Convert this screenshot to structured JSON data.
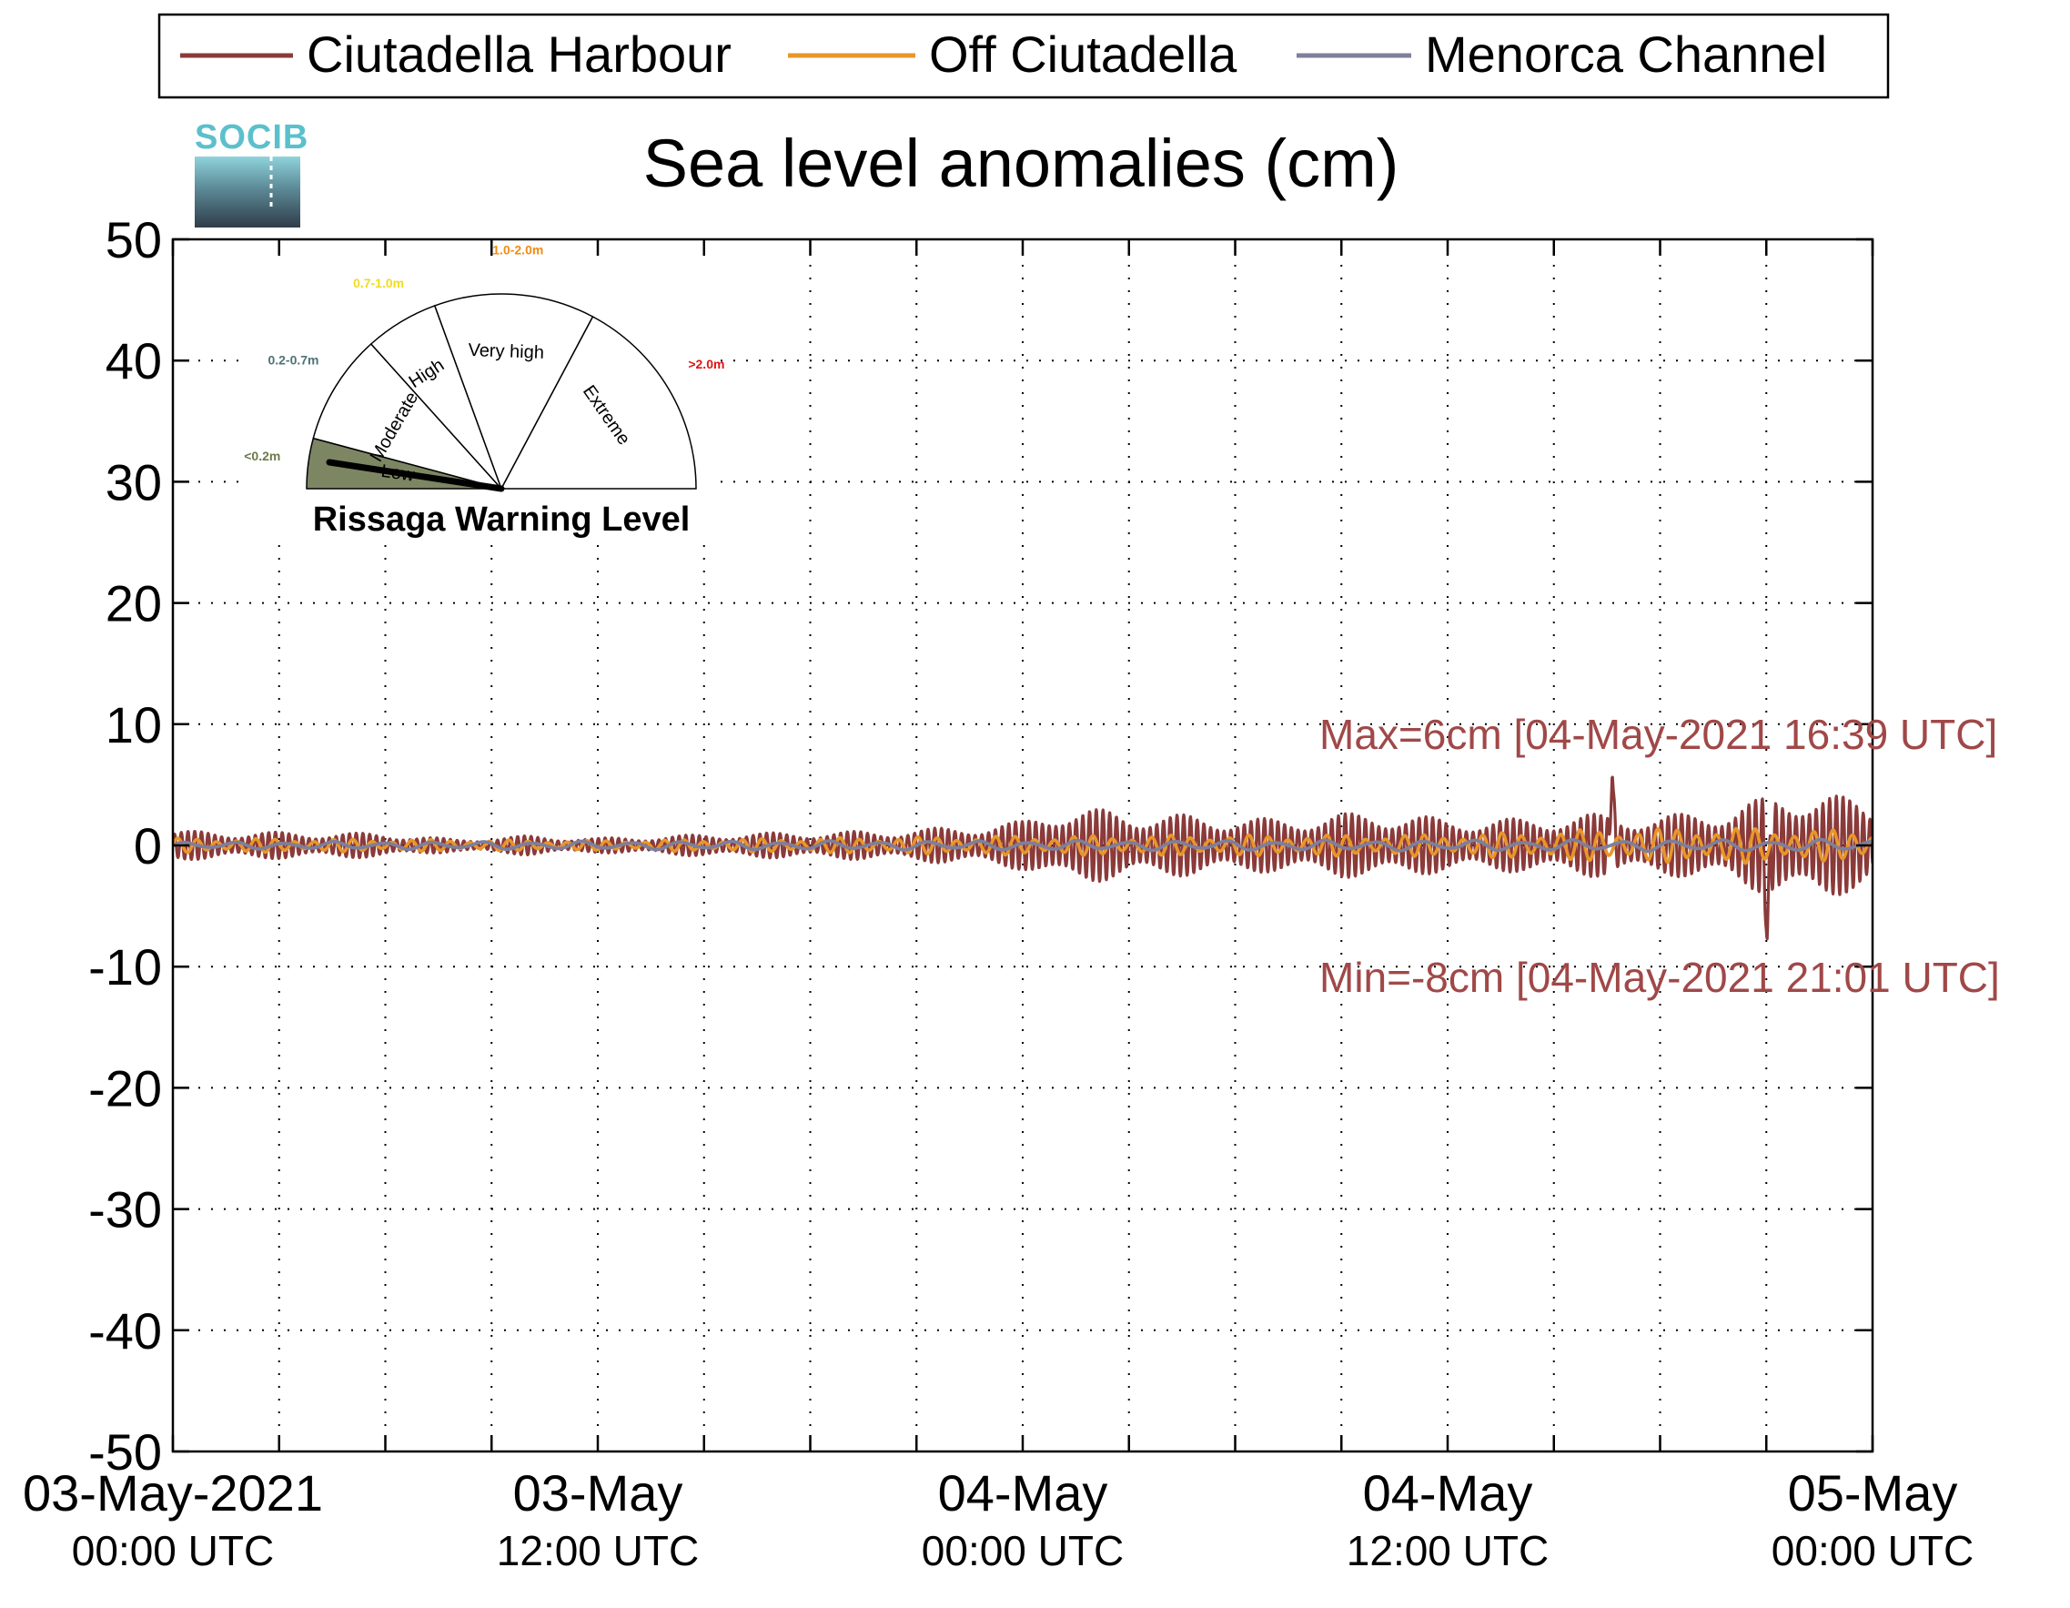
{
  "logo": {
    "text": "SOCIB"
  },
  "chart_data": {
    "type": "line",
    "title": "Sea level anomalies (cm)",
    "xlabel": "",
    "ylabel": "",
    "ylim": [
      -50,
      50
    ],
    "yticks": [
      50,
      40,
      30,
      20,
      10,
      0,
      -10,
      -20,
      -30,
      -40,
      -50
    ],
    "x_range_hours": [
      0,
      48
    ],
    "x_tick_hours": [
      0,
      3,
      6,
      9,
      12,
      15,
      18,
      21,
      24,
      27,
      30,
      33,
      36,
      39,
      42,
      45,
      48
    ],
    "x_labels": [
      {
        "hour": 0,
        "line1": "03-May-2021",
        "line2": "00:00 UTC"
      },
      {
        "hour": 12,
        "line1": "03-May",
        "line2": "12:00 UTC"
      },
      {
        "hour": 24,
        "line1": "04-May",
        "line2": "00:00 UTC"
      },
      {
        "hour": 36,
        "line1": "04-May",
        "line2": "12:00 UTC"
      },
      {
        "hour": 48,
        "line1": "05-May",
        "line2": "00:00 UTC"
      }
    ],
    "grid": true,
    "legend_position": "top",
    "series": [
      {
        "name": "Ciutadella Harbour",
        "color": "#8b3a3a",
        "envelope": [
          [
            0,
            1.2
          ],
          [
            6,
            1.0
          ],
          [
            8,
            0.5
          ],
          [
            10,
            0.8
          ],
          [
            12,
            0.6
          ],
          [
            16,
            1.0
          ],
          [
            20,
            1.2
          ],
          [
            22,
            1.5
          ],
          [
            24,
            2.0
          ],
          [
            25,
            3.2
          ],
          [
            28,
            2.6
          ],
          [
            31,
            2.2
          ],
          [
            34,
            2.8
          ],
          [
            36,
            2.2
          ],
          [
            38,
            2.2
          ],
          [
            40,
            2.6
          ],
          [
            42,
            2.4
          ],
          [
            44,
            3.2
          ],
          [
            46,
            4.8
          ],
          [
            48,
            3.5
          ]
        ],
        "max": {
          "value": 6,
          "hour": 40.65
        },
        "min": {
          "value": -8,
          "hour": 45.02
        }
      },
      {
        "name": "Off Ciutadella",
        "color": "#e8962a",
        "envelope": [
          [
            0,
            0.6
          ],
          [
            12,
            0.4
          ],
          [
            24,
            0.8
          ],
          [
            36,
            0.9
          ],
          [
            40,
            1.3
          ],
          [
            44,
            1.5
          ],
          [
            48,
            1.2
          ]
        ]
      },
      {
        "name": "Menorca Channel",
        "color": "#7d7f9c",
        "envelope": [
          [
            0,
            0.3
          ],
          [
            24,
            0.4
          ],
          [
            48,
            0.5
          ]
        ]
      }
    ],
    "annotations": {
      "max_text": "Max=6cm [04-May-2021 16:39 UTC]",
      "min_text": "Min=-8cm [04-May-2021 21:01 UTC]",
      "color": "#a04848"
    }
  },
  "warning_gauge": {
    "title": "Rissaga Warning Level",
    "current_level": "Low",
    "sectors": [
      {
        "label": "Low",
        "range": "<0.2m",
        "range_color": "#6b7a4a",
        "fill": "#7d8663"
      },
      {
        "label": "Moderate",
        "range": "0.2-0.7m",
        "range_color": "#4d7378",
        "fill": "#ffffff"
      },
      {
        "label": "High",
        "range": "0.7-1.0m",
        "range_color": "#f0dc1e",
        "fill": "#ffffff"
      },
      {
        "label": "Very high",
        "range": "1.0-2.0m",
        "range_color": "#f08c14",
        "fill": "#ffffff"
      },
      {
        "label": "Extreme",
        "range": ">2.0m",
        "range_color": "#e01414",
        "fill": "#ffffff"
      }
    ]
  }
}
